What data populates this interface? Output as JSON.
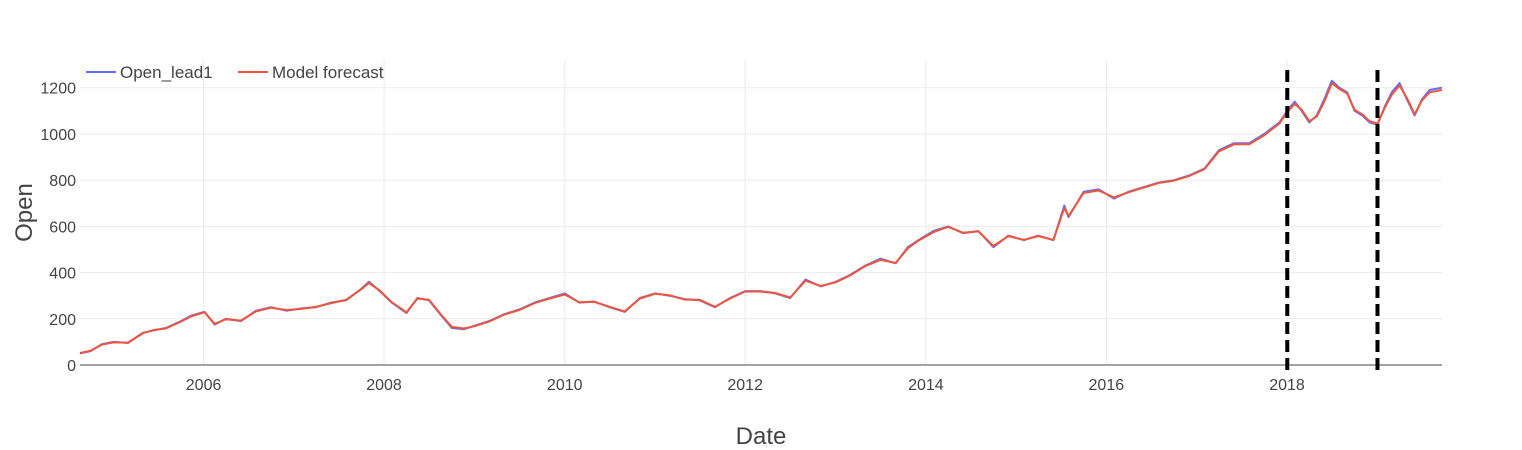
{
  "chart_data": {
    "type": "line",
    "title": "",
    "xlabel": "Date",
    "ylabel": "Open",
    "xlim": [
      "2004-08-19",
      "2019-09-20"
    ],
    "ylim": [
      0,
      1320
    ],
    "x_ticks": [
      "2006",
      "2008",
      "2010",
      "2012",
      "2014",
      "2016",
      "2018"
    ],
    "y_ticks": [
      "0",
      "200",
      "400",
      "600",
      "800",
      "1000",
      "1200"
    ],
    "grid": true,
    "legend": "top-left",
    "vertical_lines": [
      "2018-01-02",
      "2019-01-02"
    ],
    "vertical_line_color": "#000000",
    "series": [
      {
        "name": "Open_lead1",
        "color": "#636efa",
        "x": [
          "2004-08-19",
          "2004-10-01",
          "2004-11-15",
          "2005-01-01",
          "2005-03-01",
          "2005-05-01",
          "2005-06-15",
          "2005-08-01",
          "2005-10-01",
          "2005-11-15",
          "2006-01-05",
          "2006-02-15",
          "2006-04-01",
          "2006-06-01",
          "2006-08-01",
          "2006-10-01",
          "2006-12-01",
          "2007-02-01",
          "2007-04-01",
          "2007-06-01",
          "2007-08-01",
          "2007-10-01",
          "2007-11-01",
          "2007-12-15",
          "2008-02-01",
          "2008-04-01",
          "2008-05-15",
          "2008-07-01",
          "2008-08-15",
          "2008-10-01",
          "2008-11-20",
          "2009-01-01",
          "2009-03-01",
          "2009-05-01",
          "2009-07-01",
          "2009-09-01",
          "2009-11-01",
          "2010-01-01",
          "2010-03-01",
          "2010-05-01",
          "2010-07-01",
          "2010-09-01",
          "2010-11-01",
          "2011-01-01",
          "2011-03-01",
          "2011-05-01",
          "2011-07-01",
          "2011-09-01",
          "2011-11-01",
          "2012-01-01",
          "2012-03-01",
          "2012-05-01",
          "2012-07-01",
          "2012-09-01",
          "2012-11-01",
          "2013-01-01",
          "2013-03-01",
          "2013-05-01",
          "2013-07-01",
          "2013-09-01",
          "2013-10-20",
          "2013-12-01",
          "2014-02-01",
          "2014-04-01",
          "2014-06-01",
          "2014-08-01",
          "2014-10-01",
          "2014-12-01",
          "2015-02-01",
          "2015-04-01",
          "2015-06-01",
          "2015-07-15",
          "2015-08-01",
          "2015-10-01",
          "2015-12-01",
          "2016-02-01",
          "2016-04-01",
          "2016-06-01",
          "2016-08-01",
          "2016-10-01",
          "2016-12-01",
          "2017-02-01",
          "2017-04-01",
          "2017-06-01",
          "2017-08-01",
          "2017-10-01",
          "2017-12-01",
          "2018-01-02",
          "2018-02-01",
          "2018-03-01",
          "2018-04-01",
          "2018-05-01",
          "2018-06-01",
          "2018-07-01",
          "2018-08-01",
          "2018-09-01",
          "2018-10-01",
          "2018-11-01",
          "2018-12-01",
          "2019-01-02",
          "2019-02-01",
          "2019-03-01",
          "2019-04-01",
          "2019-05-01",
          "2019-06-01",
          "2019-07-01",
          "2019-08-01",
          "2019-09-20"
        ],
        "y": [
          50,
          60,
          90,
          100,
          95,
          140,
          150,
          160,
          190,
          215,
          230,
          175,
          200,
          190,
          235,
          250,
          235,
          245,
          250,
          270,
          280,
          330,
          360,
          320,
          270,
          225,
          290,
          280,
          220,
          160,
          155,
          170,
          190,
          220,
          240,
          270,
          290,
          310,
          270,
          275,
          250,
          230,
          290,
          310,
          300,
          285,
          280,
          250,
          290,
          320,
          320,
          310,
          290,
          370,
          340,
          360,
          390,
          430,
          460,
          440,
          510,
          540,
          580,
          600,
          570,
          580,
          510,
          560,
          540,
          560,
          540,
          690,
          640,
          750,
          760,
          720,
          750,
          770,
          790,
          800,
          820,
          850,
          930,
          960,
          960,
          1000,
          1050,
          1100,
          1140,
          1100,
          1050,
          1080,
          1150,
          1230,
          1200,
          1180,
          1100,
          1080,
          1050,
          1040,
          1120,
          1180,
          1220,
          1150,
          1080,
          1150,
          1190,
          1200
        ]
      },
      {
        "name": "Model forecast",
        "color": "#ef553b",
        "x": [
          "2004-08-19",
          "2004-10-01",
          "2004-11-15",
          "2005-01-01",
          "2005-03-01",
          "2005-05-01",
          "2005-06-15",
          "2005-08-01",
          "2005-10-01",
          "2005-11-15",
          "2006-01-05",
          "2006-02-15",
          "2006-04-01",
          "2006-06-01",
          "2006-08-01",
          "2006-10-01",
          "2006-12-01",
          "2007-02-01",
          "2007-04-01",
          "2007-06-01",
          "2007-08-01",
          "2007-10-01",
          "2007-11-01",
          "2007-12-15",
          "2008-02-01",
          "2008-04-01",
          "2008-05-15",
          "2008-07-01",
          "2008-08-15",
          "2008-10-01",
          "2008-11-20",
          "2009-01-01",
          "2009-03-01",
          "2009-05-01",
          "2009-07-01",
          "2009-09-01",
          "2009-11-01",
          "2010-01-01",
          "2010-03-01",
          "2010-05-01",
          "2010-07-01",
          "2010-09-01",
          "2010-11-01",
          "2011-01-01",
          "2011-03-01",
          "2011-05-01",
          "2011-07-01",
          "2011-09-01",
          "2011-11-01",
          "2012-01-01",
          "2012-03-01",
          "2012-05-01",
          "2012-07-01",
          "2012-09-01",
          "2012-11-01",
          "2013-01-01",
          "2013-03-01",
          "2013-05-01",
          "2013-07-01",
          "2013-09-01",
          "2013-10-20",
          "2013-12-01",
          "2014-02-01",
          "2014-04-01",
          "2014-06-01",
          "2014-08-01",
          "2014-10-01",
          "2014-12-01",
          "2015-02-01",
          "2015-04-01",
          "2015-06-01",
          "2015-07-15",
          "2015-08-01",
          "2015-10-01",
          "2015-12-01",
          "2016-02-01",
          "2016-04-01",
          "2016-06-01",
          "2016-08-01",
          "2016-10-01",
          "2016-12-01",
          "2017-02-01",
          "2017-04-01",
          "2017-06-01",
          "2017-08-01",
          "2017-10-01",
          "2017-12-01",
          "2018-01-02",
          "2018-02-01",
          "2018-03-01",
          "2018-04-01",
          "2018-05-01",
          "2018-06-01",
          "2018-07-01",
          "2018-08-01",
          "2018-09-01",
          "2018-10-01",
          "2018-11-01",
          "2018-12-01",
          "2019-01-02",
          "2019-02-01",
          "2019-03-01",
          "2019-04-01",
          "2019-05-01",
          "2019-06-01",
          "2019-07-01",
          "2019-08-01",
          "2019-09-20"
        ],
        "y": [
          52,
          62,
          88,
          98,
          97,
          138,
          152,
          158,
          188,
          212,
          228,
          178,
          198,
          192,
          232,
          248,
          238,
          243,
          252,
          268,
          282,
          328,
          355,
          322,
          272,
          228,
          288,
          282,
          222,
          165,
          158,
          168,
          188,
          218,
          238,
          268,
          288,
          305,
          272,
          273,
          252,
          232,
          288,
          308,
          302,
          283,
          282,
          252,
          288,
          318,
          318,
          312,
          292,
          365,
          342,
          358,
          388,
          428,
          455,
          442,
          505,
          538,
          575,
          598,
          572,
          578,
          515,
          558,
          542,
          558,
          542,
          680,
          645,
          745,
          755,
          725,
          748,
          768,
          788,
          798,
          818,
          848,
          925,
          955,
          955,
          995,
          1045,
          1095,
          1130,
          1105,
          1055,
          1075,
          1140,
          1220,
          1195,
          1175,
          1105,
          1085,
          1055,
          1045,
          1115,
          1170,
          1210,
          1155,
          1085,
          1145,
          1180,
          1190
        ]
      }
    ]
  }
}
